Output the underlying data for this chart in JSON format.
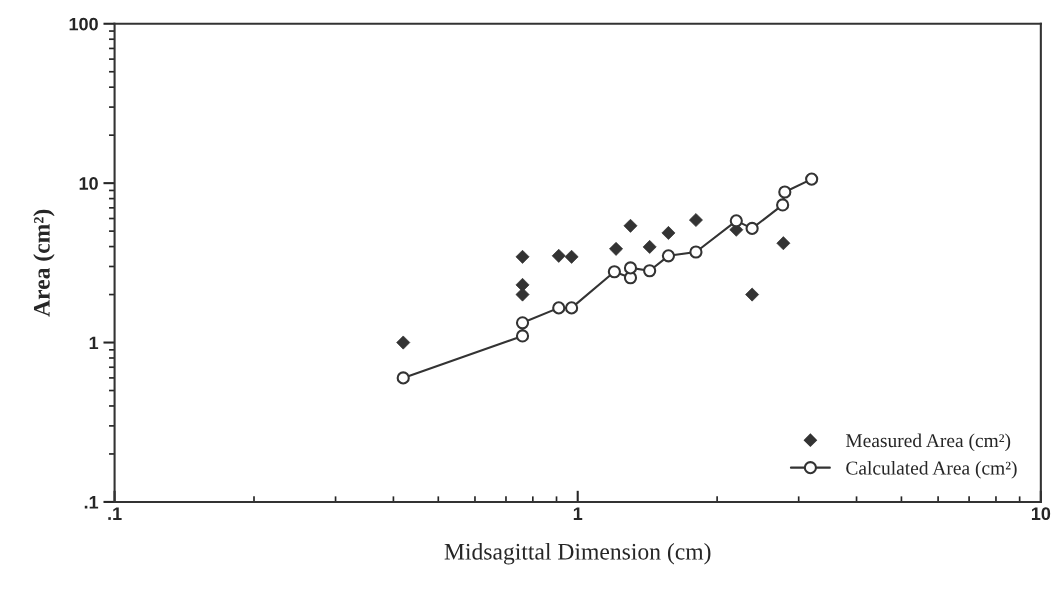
{
  "chart_data": {
    "type": "scatter",
    "xlabel": "Midsagittal Dimension (cm)",
    "ylabel": "Area (cm²)",
    "log": "xy",
    "xlim": [
      0.1,
      10
    ],
    "ylim": [
      0.1,
      100
    ],
    "xticks": [
      {
        "value": 0.1,
        "label": ".1"
      },
      1,
      10
    ],
    "yticks": [
      {
        "value": 0.1,
        "label": ".1"
      },
      1,
      10,
      100
    ],
    "grid": false,
    "legend": "bottom right",
    "series": [
      {
        "name": "Measured Area (cm²)",
        "type": "scatter",
        "marker": "diamond",
        "color": "#333333",
        "x": [
          0.42,
          0.76,
          0.76,
          0.76,
          0.91,
          0.97,
          1.21,
          1.3,
          1.43,
          1.57,
          1.8,
          2.2,
          2.38,
          2.78
        ],
        "values": [
          1.0,
          3.45,
          2.3,
          2.0,
          3.5,
          3.45,
          3.87,
          5.4,
          3.98,
          4.87,
          5.87,
          5.1,
          2.0,
          4.2
        ]
      },
      {
        "name": "Calculated Area (cm²)",
        "type": "line",
        "marker": "circle",
        "line_style": "solid",
        "color": "#333333",
        "x": [
          0.42,
          0.76,
          0.76,
          0.91,
          0.97,
          1.2,
          1.3,
          1.3,
          1.43,
          1.57,
          1.8,
          2.2,
          2.38,
          2.77,
          2.8,
          3.2
        ],
        "values": [
          0.6,
          1.1,
          1.33,
          1.65,
          1.65,
          2.78,
          2.55,
          2.94,
          2.82,
          3.5,
          3.7,
          5.8,
          5.2,
          7.3,
          8.8,
          10.6
        ]
      }
    ]
  }
}
